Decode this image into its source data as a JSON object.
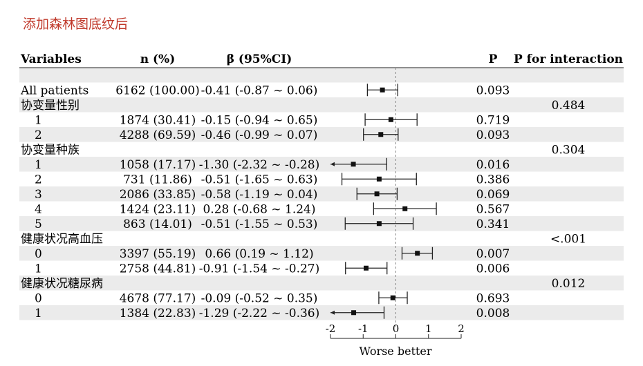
{
  "page_title": "添加森林图底纹后",
  "colors": {
    "title": "#c0392b",
    "text": "#222222",
    "band": "#ebebeb",
    "ref_line": "#888888"
  },
  "chart_data": {
    "type": "forest",
    "title": "添加森林图底纹后",
    "columns": {
      "variables": "Variables",
      "n": "n (%)",
      "beta": "β (95%CI)",
      "p": "P",
      "p_int": "P for interaction"
    },
    "xlabel": "Worse better",
    "xlim": [
      -2,
      2
    ],
    "xticks": [
      -2,
      -1,
      0,
      1,
      2
    ],
    "xtick_labels": [
      "-2",
      "-1",
      "0",
      "1",
      "2"
    ],
    "reference_line": 0,
    "rows": [
      {
        "type": "blank",
        "label": "",
        "n": "",
        "ci_text": "",
        "p": "",
        "p_int": ""
      },
      {
        "type": "data",
        "label": "All patients",
        "n": "6162 (100.00)",
        "ci_text": "-0.41 (-0.87 ~ 0.06)",
        "est": -0.41,
        "lo": -0.87,
        "hi": 0.06,
        "p": "0.093",
        "p_int": ""
      },
      {
        "type": "group",
        "label": "协变量性别",
        "n": "",
        "ci_text": "",
        "p": "",
        "p_int": "0.484"
      },
      {
        "type": "data",
        "label": "1",
        "n": "1874 (30.41)",
        "ci_text": "-0.15 (-0.94 ~ 0.65)",
        "est": -0.15,
        "lo": -0.94,
        "hi": 0.65,
        "p": "0.719",
        "p_int": ""
      },
      {
        "type": "data",
        "label": "2",
        "n": "4288 (69.59)",
        "ci_text": "-0.46 (-0.99 ~ 0.07)",
        "est": -0.46,
        "lo": -0.99,
        "hi": 0.07,
        "p": "0.093",
        "p_int": ""
      },
      {
        "type": "group",
        "label": "协变量种族",
        "n": "",
        "ci_text": "",
        "p": "",
        "p_int": "0.304"
      },
      {
        "type": "data",
        "label": "1",
        "n": "1058 (17.17)",
        "ci_text": "-1.30 (-2.32 ~ -0.28)",
        "est": -1.3,
        "lo": -2.32,
        "hi": -0.28,
        "p": "0.016",
        "p_int": ""
      },
      {
        "type": "data",
        "label": "2",
        "n": "731 (11.86)",
        "ci_text": "-0.51 (-1.65 ~ 0.63)",
        "est": -0.51,
        "lo": -1.65,
        "hi": 0.63,
        "p": "0.386",
        "p_int": ""
      },
      {
        "type": "data",
        "label": "3",
        "n": "2086 (33.85)",
        "ci_text": "-0.58 (-1.19 ~ 0.04)",
        "est": -0.58,
        "lo": -1.19,
        "hi": 0.04,
        "p": "0.069",
        "p_int": ""
      },
      {
        "type": "data",
        "label": "4",
        "n": "1424 (23.11)",
        "ci_text": "0.28 (-0.68 ~ 1.24)",
        "est": 0.28,
        "lo": -0.68,
        "hi": 1.24,
        "p": "0.567",
        "p_int": ""
      },
      {
        "type": "data",
        "label": "5",
        "n": "863 (14.01)",
        "ci_text": "-0.51 (-1.55 ~ 0.53)",
        "est": -0.51,
        "lo": -1.55,
        "hi": 0.53,
        "p": "0.341",
        "p_int": ""
      },
      {
        "type": "group",
        "label": "健康状况高血压",
        "n": "",
        "ci_text": "",
        "p": "",
        "p_int": "<.001"
      },
      {
        "type": "data",
        "label": "0",
        "n": "3397 (55.19)",
        "ci_text": "0.66 (0.19 ~ 1.12)",
        "est": 0.66,
        "lo": 0.19,
        "hi": 1.12,
        "p": "0.007",
        "p_int": ""
      },
      {
        "type": "data",
        "label": "1",
        "n": "2758 (44.81)",
        "ci_text": "-0.91 (-1.54 ~ -0.27)",
        "est": -0.91,
        "lo": -1.54,
        "hi": -0.27,
        "p": "0.006",
        "p_int": ""
      },
      {
        "type": "group",
        "label": "健康状况糖尿病",
        "n": "",
        "ci_text": "",
        "p": "",
        "p_int": "0.012"
      },
      {
        "type": "data",
        "label": "0",
        "n": "4678 (77.17)",
        "ci_text": "-0.09 (-0.52 ~ 0.35)",
        "est": -0.09,
        "lo": -0.52,
        "hi": 0.35,
        "p": "0.693",
        "p_int": ""
      },
      {
        "type": "data",
        "label": "1",
        "n": "1384 (22.83)",
        "ci_text": "-1.29 (-2.22 ~ -0.36)",
        "est": -1.29,
        "lo": -2.22,
        "hi": -0.36,
        "p": "0.008",
        "p_int": ""
      }
    ]
  }
}
